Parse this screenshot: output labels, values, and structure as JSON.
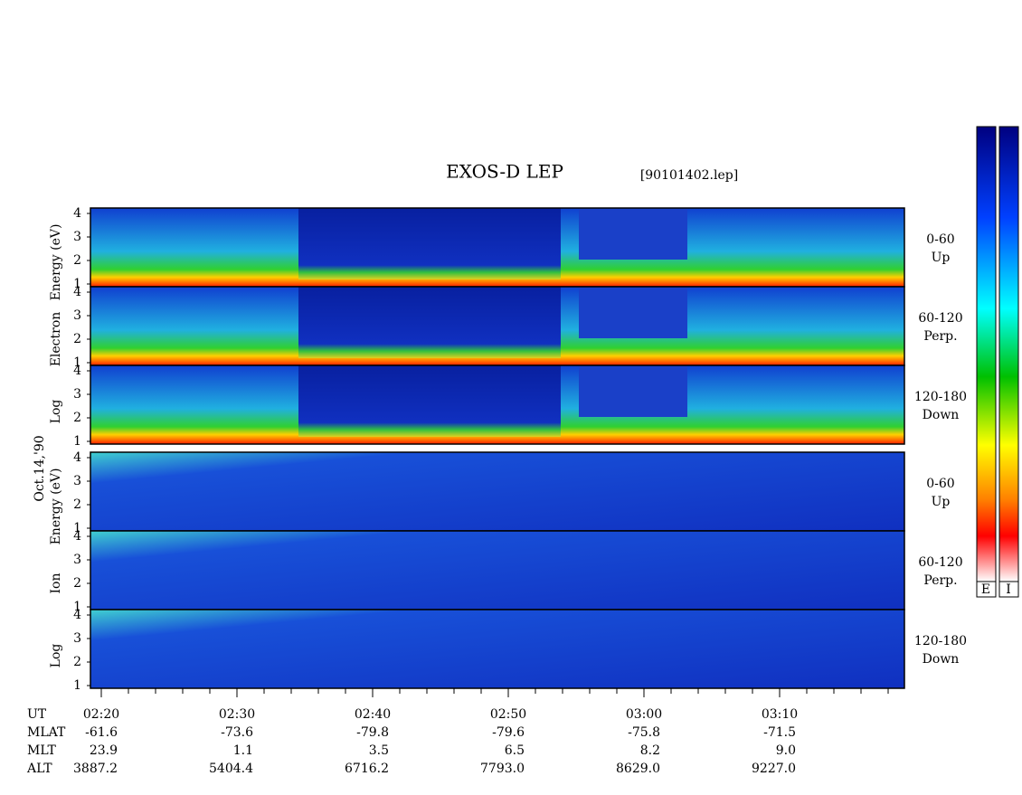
{
  "title": "EXOS-D LEP",
  "file": "[90101402.lep]",
  "date": "Oct.14,'90",
  "electron_axis": [
    "Log",
    "Electron",
    "Energy (eV)"
  ],
  "ion_axis": [
    "Log",
    "Ion",
    "Energy (eV)"
  ],
  "y_ticks": [
    "1",
    "2",
    "3",
    "4"
  ],
  "panels": [
    {
      "range": "0-60",
      "direction": "Up"
    },
    {
      "range": "60-120",
      "direction": "Perp."
    },
    {
      "range": "120-180",
      "direction": "Down"
    },
    {
      "range": "0-60",
      "direction": "Up"
    },
    {
      "range": "60-120",
      "direction": "Perp."
    },
    {
      "range": "120-180",
      "direction": "Down"
    }
  ],
  "orbit": {
    "row_labels": [
      "UT",
      "MLAT",
      "MLT",
      "ALT"
    ],
    "columns": [
      [
        "02:20",
        "-61.6",
        "23.9",
        "3887.2"
      ],
      [
        "02:30",
        "-73.6",
        "1.1",
        "5404.4"
      ],
      [
        "02:40",
        "-79.8",
        "3.5",
        "6716.2"
      ],
      [
        "02:50",
        "-79.6",
        "6.5",
        "7793.0"
      ],
      [
        "03:00",
        "-75.8",
        "8.2",
        "8629.0"
      ],
      [
        "03:10",
        "-71.5",
        "9.0",
        "9227.0"
      ]
    ]
  },
  "colorbar_labels": [
    "E",
    "I"
  ]
}
